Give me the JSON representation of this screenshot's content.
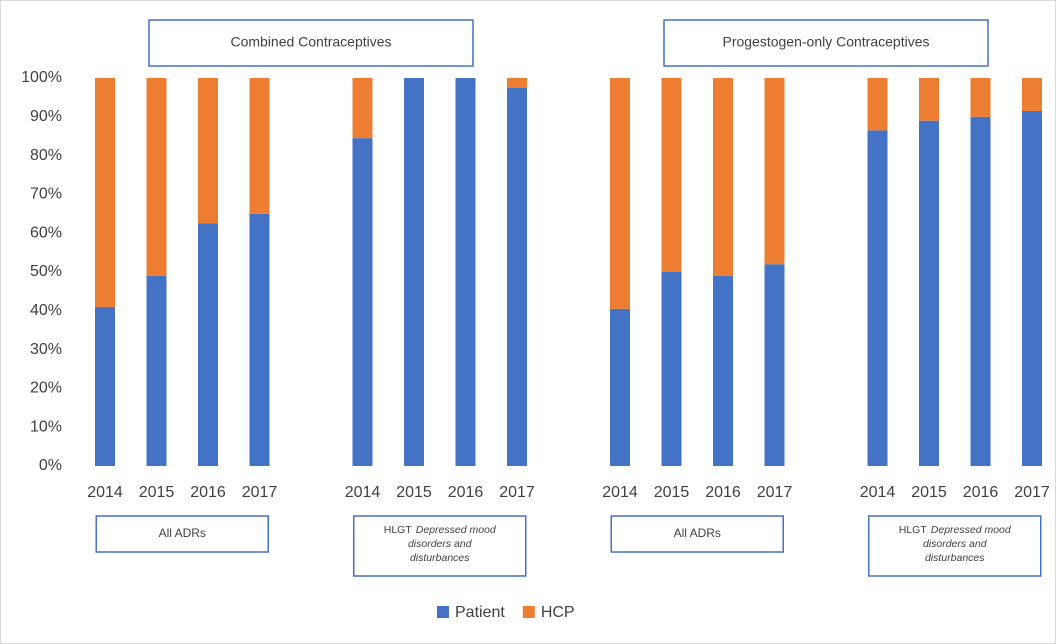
{
  "chart_data": {
    "type": "stacked_bar",
    "categories": [
      "2014",
      "2015",
      "2016",
      "2017",
      "2014",
      "2015",
      "2016",
      "2017",
      "2014",
      "2015",
      "2016",
      "2017",
      "2014",
      "2015",
      "2016",
      "2017"
    ],
    "series": [
      {
        "name": "Patient",
        "color": "#4472c4",
        "values": [
          41,
          49,
          62.5,
          65,
          84.5,
          100,
          100,
          97.5,
          40.5,
          50,
          49,
          52,
          86.5,
          89,
          90,
          91.5
        ]
      },
      {
        "name": "HCP",
        "color": "#ed7d31",
        "values": [
          59,
          51,
          37.5,
          35,
          15.5,
          0,
          0,
          2.5,
          59.5,
          50,
          51,
          48,
          13.5,
          11,
          10,
          8.5
        ]
      }
    ],
    "ylim": [
      0,
      100
    ],
    "yticks": [
      {
        "value": 0,
        "label": "0%"
      },
      {
        "value": 10,
        "label": "10%"
      },
      {
        "value": 20,
        "label": "20%"
      },
      {
        "value": 30,
        "label": "30%"
      },
      {
        "value": 40,
        "label": "40%"
      },
      {
        "value": 50,
        "label": "50%"
      },
      {
        "value": 60,
        "label": "60%"
      },
      {
        "value": 70,
        "label": "70%"
      },
      {
        "value": 80,
        "label": "80%"
      },
      {
        "value": 90,
        "label": "90%"
      },
      {
        "value": 100,
        "label": "100%"
      }
    ],
    "panel_titles": [
      "Combined Contraceptives",
      "Progestogen-only Contraceptives"
    ],
    "group_labels": [
      {
        "lines": [
          "All ADRs"
        ]
      },
      {
        "prefix": "HLGT",
        "lines": [
          "Depressed mood",
          "disorders and",
          "disturbances"
        ]
      },
      {
        "lines": [
          "All ADRs"
        ]
      },
      {
        "prefix": "HLGT",
        "lines": [
          "Depressed mood",
          "disorders and",
          "disturbances"
        ]
      }
    ],
    "legend": "bottom"
  }
}
